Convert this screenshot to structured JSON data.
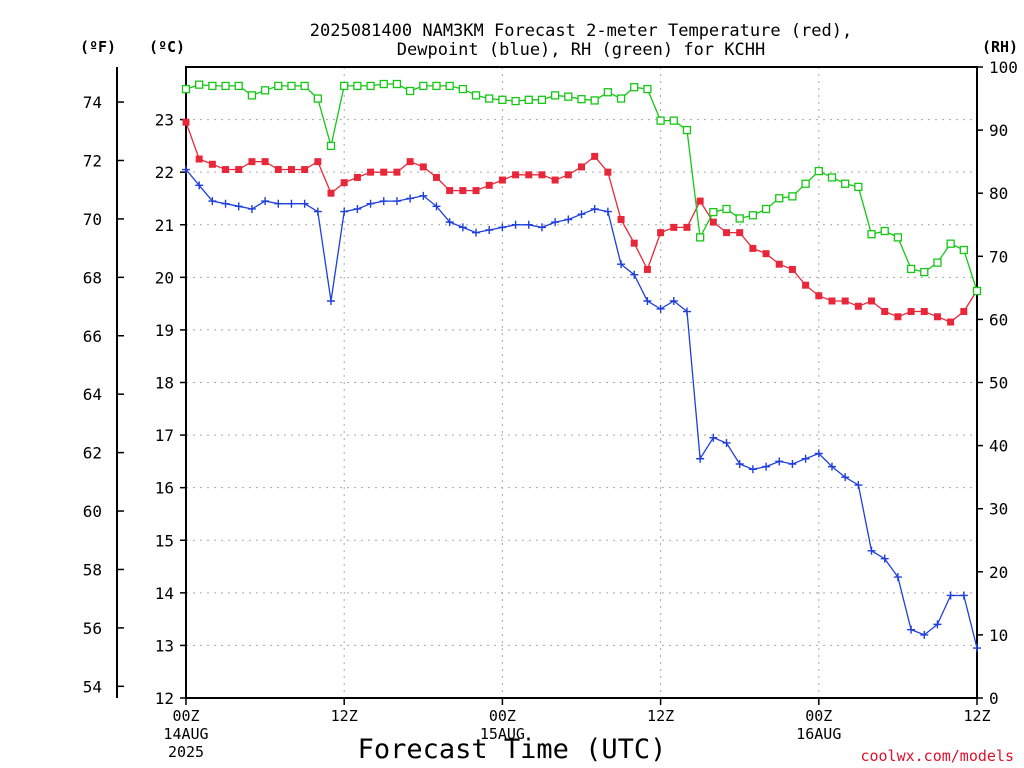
{
  "chart_data": {
    "type": "line",
    "title_line1": "2025081400 NAM3KM Forecast 2-meter Temperature (red),",
    "title_line2": "Dewpoint (blue), RH (green) for KCHH",
    "xlabel": "Forecast Time (UTC)",
    "credit": "coolwx.com/models",
    "grid": true,
    "left_outer_axis": {
      "unit": "(ºF)",
      "ticks": [
        54,
        56,
        58,
        60,
        62,
        64,
        66,
        68,
        70,
        72,
        74
      ]
    },
    "left_inner_axis": {
      "unit": "(ºC)",
      "ylim": [
        12,
        24
      ],
      "ticks": [
        12,
        13,
        14,
        15,
        16,
        17,
        18,
        19,
        20,
        21,
        22,
        23
      ]
    },
    "right_axis": {
      "unit": "(RH)",
      "ylim": [
        0,
        100
      ],
      "ticks": [
        0,
        10,
        20,
        30,
        40,
        50,
        60,
        70,
        80,
        90,
        100
      ]
    },
    "x_axis": {
      "range_hours": [
        0,
        60
      ],
      "ticks": [
        {
          "hour": 0,
          "lines": [
            "00Z",
            "14AUG",
            "2025"
          ]
        },
        {
          "hour": 12,
          "lines": [
            "12Z"
          ]
        },
        {
          "hour": 24,
          "lines": [
            "00Z",
            "15AUG"
          ]
        },
        {
          "hour": 36,
          "lines": [
            "12Z"
          ]
        },
        {
          "hour": 48,
          "lines": [
            "00Z",
            "16AUG"
          ]
        },
        {
          "hour": 60,
          "lines": [
            "12Z"
          ]
        }
      ]
    },
    "x": [
      0,
      1,
      2,
      3,
      4,
      5,
      6,
      7,
      8,
      9,
      10,
      11,
      12,
      13,
      14,
      15,
      16,
      17,
      18,
      19,
      20,
      21,
      22,
      23,
      24,
      25,
      26,
      27,
      28,
      29,
      30,
      31,
      32,
      33,
      34,
      35,
      36,
      37,
      38,
      39,
      40,
      41,
      42,
      43,
      44,
      45,
      46,
      47,
      48,
      49,
      50,
      51,
      52,
      53,
      54,
      55,
      56,
      57,
      58,
      59,
      60
    ],
    "series": [
      {
        "name": "Temperature (red)",
        "units": "C",
        "color": "#e8283a",
        "marker": "square",
        "values": [
          22.95,
          22.25,
          22.15,
          22.05,
          22.05,
          22.2,
          22.2,
          22.05,
          22.05,
          22.05,
          22.2,
          21.6,
          21.8,
          21.9,
          22.0,
          22.0,
          22.0,
          22.2,
          22.1,
          21.9,
          21.65,
          21.65,
          21.65,
          21.75,
          21.85,
          21.95,
          21.95,
          21.95,
          21.85,
          21.95,
          22.1,
          22.3,
          22.0,
          21.1,
          20.65,
          20.15,
          20.85,
          20.95,
          20.95,
          21.45,
          21.05,
          20.85,
          20.85,
          20.55,
          20.45,
          20.25,
          20.15,
          19.85,
          19.65,
          19.55,
          19.55,
          19.45,
          19.55,
          19.35,
          19.25,
          19.35,
          19.35,
          19.25,
          19.15,
          19.35,
          19.75
        ]
      },
      {
        "name": "Dewpoint (blue)",
        "units": "C",
        "color": "#1f3fdc",
        "marker": "plus",
        "values": [
          22.05,
          21.75,
          21.45,
          21.4,
          21.35,
          21.3,
          21.45,
          21.4,
          21.4,
          21.4,
          21.25,
          19.55,
          21.25,
          21.3,
          21.4,
          21.45,
          21.45,
          21.5,
          21.55,
          21.35,
          21.05,
          20.95,
          20.85,
          20.9,
          20.95,
          21.0,
          21.0,
          20.95,
          21.05,
          21.1,
          21.2,
          21.3,
          21.25,
          20.25,
          20.05,
          19.55,
          19.4,
          19.55,
          19.35,
          16.55,
          16.95,
          16.85,
          16.45,
          16.35,
          16.4,
          16.5,
          16.45,
          16.55,
          16.65,
          16.4,
          16.2,
          16.05,
          14.8,
          14.65,
          14.3,
          13.3,
          13.2,
          13.4,
          13.95,
          13.95,
          12.95
        ]
      },
      {
        "name": "RH (green)",
        "units": "%",
        "color": "#14c814",
        "marker": "open-square",
        "values": [
          96.5,
          97.2,
          97.0,
          97.0,
          97.0,
          95.5,
          96.3,
          97.0,
          97.0,
          97.0,
          95.0,
          87.5,
          97.0,
          97.0,
          97.0,
          97.3,
          97.3,
          96.2,
          97.0,
          97.0,
          97.0,
          96.5,
          95.5,
          95.0,
          94.8,
          94.6,
          94.8,
          94.8,
          95.5,
          95.3,
          94.9,
          94.7,
          96.0,
          95.0,
          96.8,
          96.5,
          91.5,
          91.5,
          90.0,
          73.0,
          77.0,
          77.5,
          76.0,
          76.5,
          77.5,
          79.2,
          79.5,
          81.5,
          83.5,
          82.5,
          81.5,
          81.0,
          73.5,
          74.0,
          73.0,
          68.0,
          67.5,
          69.0,
          72.0,
          71.0,
          64.5
        ]
      }
    ]
  }
}
